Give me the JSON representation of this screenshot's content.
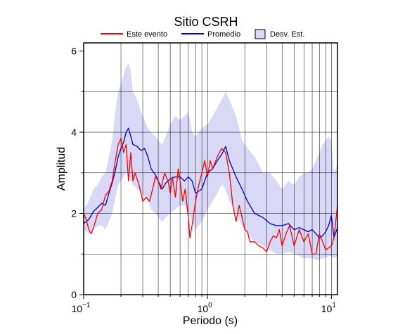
{
  "chart_data": {
    "type": "line",
    "title": "Sitio CSRH",
    "xlabel": "Periodo (s)",
    "ylabel": "Amplitud",
    "x_scale": "log",
    "xlim": [
      0.1,
      11.2
    ],
    "ylim": [
      0,
      6.2
    ],
    "x_ticks": [
      {
        "value": 0.1,
        "base": "10",
        "exp": "−1"
      },
      {
        "value": 1,
        "base": "10",
        "exp": "0"
      },
      {
        "value": 10,
        "base": "10",
        "exp": "1"
      }
    ],
    "y_ticks": [
      0,
      2,
      4,
      6
    ],
    "grid": true,
    "legend_position": "top",
    "legend": [
      {
        "label": "Este evento",
        "kind": "line",
        "color": "#ff0000"
      },
      {
        "label": "Promedio",
        "kind": "line",
        "color": "#0000cc"
      },
      {
        "label": "Desv. Est.",
        "kind": "band",
        "color": "#d9d9f7"
      }
    ],
    "series": [
      {
        "name": "Este evento",
        "color": "#ff0000",
        "x": [
          0.1,
          0.105,
          0.11,
          0.115,
          0.12,
          0.13,
          0.14,
          0.15,
          0.16,
          0.17,
          0.18,
          0.19,
          0.2,
          0.21,
          0.22,
          0.23,
          0.24,
          0.25,
          0.26,
          0.28,
          0.3,
          0.32,
          0.34,
          0.36,
          0.38,
          0.4,
          0.42,
          0.45,
          0.48,
          0.5,
          0.52,
          0.55,
          0.58,
          0.6,
          0.63,
          0.66,
          0.7,
          0.72,
          0.75,
          0.8,
          0.85,
          0.9,
          0.95,
          1.0,
          1.05,
          1.1,
          1.2,
          1.3,
          1.4,
          1.5,
          1.6,
          1.7,
          1.8,
          1.9,
          2.0,
          2.1,
          2.2,
          2.4,
          2.6,
          2.8,
          3.0,
          3.2,
          3.4,
          3.6,
          3.8,
          4.0,
          4.3,
          4.6,
          5.0,
          5.5,
          6.0,
          6.5,
          7.0,
          7.5,
          8.0,
          8.5,
          9.0,
          10.0,
          10.5,
          11.2
        ],
        "y": [
          2.0,
          1.85,
          1.6,
          1.5,
          1.65,
          2.0,
          2.1,
          2.45,
          2.55,
          2.8,
          3.3,
          3.7,
          3.85,
          3.5,
          3.7,
          2.8,
          3.5,
          2.8,
          3.0,
          2.7,
          2.3,
          2.4,
          2.3,
          2.6,
          2.9,
          2.8,
          2.6,
          3.0,
          2.8,
          2.5,
          2.9,
          2.4,
          3.1,
          2.8,
          2.3,
          2.6,
          1.9,
          1.4,
          1.7,
          2.3,
          2.7,
          3.0,
          3.3,
          2.9,
          3.3,
          3.1,
          3.4,
          3.6,
          3.5,
          3.0,
          2.2,
          1.8,
          2.2,
          1.9,
          1.6,
          1.55,
          1.3,
          1.3,
          1.2,
          1.15,
          1.05,
          1.3,
          1.45,
          1.4,
          1.6,
          1.2,
          1.5,
          1.7,
          1.2,
          1.6,
          1.3,
          1.5,
          1.0,
          1.0,
          1.5,
          1.3,
          1.1,
          1.2,
          1.4,
          2.2
        ]
      },
      {
        "name": "Promedio",
        "color": "#0000cc",
        "x": [
          0.1,
          0.11,
          0.12,
          0.13,
          0.14,
          0.15,
          0.16,
          0.17,
          0.18,
          0.19,
          0.2,
          0.21,
          0.22,
          0.23,
          0.24,
          0.25,
          0.27,
          0.29,
          0.31,
          0.33,
          0.35,
          0.38,
          0.4,
          0.43,
          0.46,
          0.5,
          0.55,
          0.6,
          0.65,
          0.7,
          0.75,
          0.8,
          0.85,
          0.9,
          1.0,
          1.1,
          1.2,
          1.3,
          1.4,
          1.5,
          1.7,
          1.9,
          2.1,
          2.4,
          2.8,
          3.2,
          3.6,
          4.0,
          4.5,
          5.0,
          5.5,
          6.0,
          6.5,
          7.0,
          7.5,
          8.0,
          8.5,
          9.0,
          9.5,
          10.0,
          10.5,
          11.2
        ],
        "y": [
          1.75,
          1.85,
          2.05,
          2.15,
          2.25,
          2.2,
          2.5,
          2.75,
          3.05,
          3.4,
          3.6,
          3.75,
          4.0,
          4.1,
          3.9,
          3.7,
          3.65,
          3.55,
          3.6,
          3.4,
          3.1,
          2.95,
          2.8,
          2.6,
          2.75,
          2.85,
          2.9,
          2.9,
          2.8,
          2.9,
          2.8,
          2.5,
          2.55,
          2.6,
          3.0,
          3.1,
          3.3,
          3.45,
          3.65,
          3.3,
          2.9,
          2.6,
          2.3,
          2.0,
          1.9,
          1.75,
          1.7,
          1.7,
          1.75,
          1.6,
          1.65,
          1.6,
          1.55,
          1.6,
          1.5,
          1.4,
          1.45,
          1.55,
          1.7,
          1.95,
          1.4,
          1.65
        ]
      }
    ],
    "band": {
      "name": "Desv. Est.",
      "color": "#d9d9f7",
      "x": [
        0.1,
        0.11,
        0.12,
        0.13,
        0.14,
        0.15,
        0.16,
        0.17,
        0.18,
        0.19,
        0.2,
        0.21,
        0.22,
        0.23,
        0.24,
        0.25,
        0.27,
        0.29,
        0.31,
        0.33,
        0.35,
        0.38,
        0.4,
        0.43,
        0.46,
        0.5,
        0.55,
        0.6,
        0.65,
        0.7,
        0.75,
        0.8,
        0.85,
        0.9,
        1.0,
        1.1,
        1.2,
        1.3,
        1.4,
        1.5,
        1.7,
        1.9,
        2.1,
        2.4,
        2.8,
        3.2,
        3.6,
        4.0,
        4.5,
        5.0,
        5.5,
        6.0,
        6.5,
        7.0,
        7.5,
        8.0,
        8.5,
        9.0,
        9.5,
        10.0,
        10.5,
        11.2
      ],
      "upper": [
        2.1,
        2.3,
        2.6,
        2.7,
        2.9,
        3.0,
        3.4,
        3.8,
        4.5,
        5.0,
        5.2,
        5.4,
        5.6,
        5.7,
        5.5,
        5.0,
        4.8,
        4.5,
        4.3,
        4.1,
        4.0,
        3.9,
        3.8,
        3.7,
        3.9,
        4.2,
        4.4,
        4.3,
        4.4,
        4.5,
        4.0,
        3.9,
        4.0,
        4.1,
        4.2,
        4.4,
        4.6,
        4.8,
        5.0,
        4.8,
        4.4,
        3.8,
        3.6,
        3.4,
        3.0,
        3.0,
        2.8,
        2.6,
        2.8,
        2.7,
        2.9,
        3.0,
        3.0,
        3.1,
        3.3,
        3.5,
        3.7,
        3.8,
        3.9,
        3.8,
        3.0,
        3.2
      ],
      "lower": [
        1.6,
        1.5,
        1.6,
        1.7,
        1.7,
        1.6,
        1.8,
        2.0,
        2.4,
        2.7,
        2.8,
        2.9,
        3.0,
        3.0,
        2.8,
        2.7,
        2.6,
        2.5,
        2.4,
        2.3,
        2.1,
        2.0,
        1.9,
        1.8,
        1.9,
        2.0,
        2.1,
        2.2,
        2.2,
        2.0,
        1.8,
        1.6,
        1.7,
        1.8,
        2.1,
        2.3,
        2.5,
        2.7,
        2.6,
        2.3,
        2.0,
        1.7,
        1.5,
        1.3,
        1.2,
        1.1,
        1.0,
        1.0,
        1.05,
        1.0,
        0.95,
        0.9,
        0.9,
        0.9,
        0.85,
        0.85,
        0.9,
        0.9,
        0.95,
        0.95,
        0.9,
        0.95
      ]
    }
  }
}
